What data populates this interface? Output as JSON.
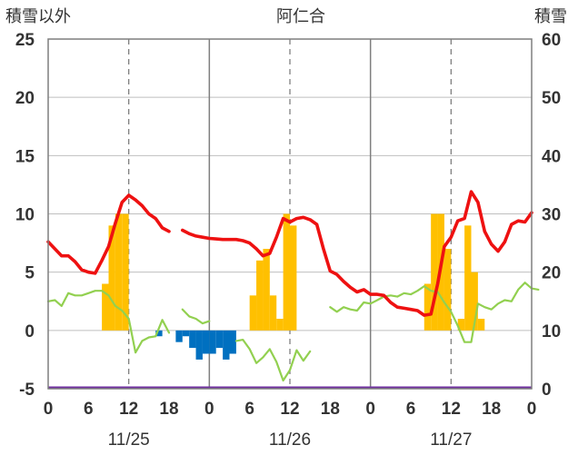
{
  "chart_data": {
    "type": "bar+line",
    "title": "阿仁合",
    "ylabel_left": "積雪以外",
    "ylabel_right": "積雪",
    "ylim_left": [
      -5,
      25
    ],
    "ylim_right": [
      0,
      60
    ],
    "yticks_left": [
      "-5",
      "0",
      "5",
      "10",
      "15",
      "20",
      "25"
    ],
    "yticks_right": [
      "0",
      "10",
      "20",
      "30",
      "40",
      "50",
      "60"
    ],
    "xlim_hours": [
      0,
      72
    ],
    "xticks": [
      "0",
      "6",
      "12",
      "18",
      "0",
      "6",
      "12",
      "18",
      "0",
      "6",
      "12",
      "18",
      "0"
    ],
    "day_labels": [
      "11/25",
      "11/26",
      "11/27"
    ],
    "grid": "vertical dashed at 12:00, solid day separators",
    "colors": {
      "temperature": "#ee1111",
      "snow_depth": "#92d050",
      "precip_positive": "#ffc000",
      "precip_negative": "#0070c0",
      "baseline": "#7030a0"
    },
    "series": [
      {
        "values_axis": "left",
        "kind": "line",
        "color_key": "temperature",
        "points": [
          [
            0,
            7.6
          ],
          [
            1,
            7.0
          ],
          [
            2,
            6.4
          ],
          [
            3,
            6.4
          ],
          [
            4,
            5.9
          ],
          [
            5,
            5.2
          ],
          [
            6,
            5.0
          ],
          [
            7,
            4.9
          ],
          [
            8,
            6.0
          ],
          [
            9,
            7.2
          ],
          [
            10,
            9.2
          ],
          [
            11,
            11.0
          ],
          [
            12,
            11.6
          ],
          [
            13,
            11.2
          ],
          [
            14,
            10.7
          ],
          [
            15,
            10.0
          ],
          [
            16,
            9.6
          ],
          [
            17,
            8.8
          ],
          [
            18,
            8.5
          ],
          [
            19,
            null
          ],
          [
            20,
            8.6
          ],
          [
            21,
            8.3
          ],
          [
            22,
            8.1
          ],
          [
            23,
            8.0
          ],
          [
            24,
            7.9
          ],
          [
            25,
            7.85
          ],
          [
            26,
            7.8
          ],
          [
            27,
            7.8
          ],
          [
            28,
            7.8
          ],
          [
            29,
            7.7
          ],
          [
            30,
            7.5
          ],
          [
            31,
            7.0
          ],
          [
            32,
            6.4
          ],
          [
            33,
            6.6
          ],
          [
            34,
            8.0
          ],
          [
            35,
            9.6
          ],
          [
            36,
            9.3
          ],
          [
            37,
            9.6
          ],
          [
            38,
            9.7
          ],
          [
            39,
            9.5
          ],
          [
            40,
            9.1
          ],
          [
            41,
            7.0
          ],
          [
            42,
            5.1
          ],
          [
            43,
            4.8
          ],
          [
            44,
            4.2
          ],
          [
            45,
            3.7
          ],
          [
            46,
            3.3
          ],
          [
            47,
            3.5
          ],
          [
            48,
            3.1
          ],
          [
            49,
            3.1
          ],
          [
            50,
            3.0
          ],
          [
            51,
            2.4
          ],
          [
            52,
            2.0
          ],
          [
            53,
            1.9
          ],
          [
            54,
            1.8
          ],
          [
            55,
            1.7
          ],
          [
            56,
            1.3
          ],
          [
            57,
            1.4
          ],
          [
            58,
            4.0
          ],
          [
            59,
            7.2
          ],
          [
            60,
            8.0
          ],
          [
            61,
            9.4
          ],
          [
            62,
            9.6
          ],
          [
            63,
            11.9
          ],
          [
            64,
            11.0
          ],
          [
            65,
            8.5
          ],
          [
            66,
            7.4
          ],
          [
            67,
            6.8
          ],
          [
            68,
            7.6
          ],
          [
            69,
            9.1
          ],
          [
            70,
            9.4
          ],
          [
            71,
            9.3
          ],
          [
            72,
            10.1
          ]
        ]
      },
      {
        "values_axis": "left",
        "kind": "line",
        "color_key": "snow_depth",
        "points": [
          [
            0,
            2.5
          ],
          [
            1,
            2.6
          ],
          [
            2,
            2.1
          ],
          [
            3,
            3.2
          ],
          [
            4,
            3.0
          ],
          [
            5,
            3.0
          ],
          [
            6,
            3.2
          ],
          [
            7,
            3.4
          ],
          [
            8,
            3.4
          ],
          [
            9,
            3.0
          ],
          [
            10,
            2.1
          ],
          [
            11,
            1.7
          ],
          [
            12,
            1.0
          ],
          [
            13,
            -1.9
          ],
          [
            14,
            -0.9
          ],
          [
            15,
            -0.6
          ],
          [
            16,
            -0.5
          ],
          [
            17,
            0.9
          ],
          [
            18,
            -0.2
          ],
          [
            19,
            null
          ],
          [
            20,
            1.8
          ],
          [
            21,
            1.2
          ],
          [
            22,
            1.0
          ],
          [
            23,
            0.6
          ],
          [
            24,
            0.8
          ],
          [
            25,
            null
          ],
          [
            26,
            null
          ],
          [
            27,
            null
          ],
          [
            28,
            -0.9
          ],
          [
            29,
            -0.8
          ],
          [
            30,
            -1.6
          ],
          [
            31,
            -2.8
          ],
          [
            32,
            -2.3
          ],
          [
            33,
            -1.6
          ],
          [
            34,
            -2.7
          ],
          [
            35,
            -4.3
          ],
          [
            36,
            -3.4
          ],
          [
            37,
            -1.7
          ],
          [
            38,
            -2.6
          ],
          [
            39,
            -1.8
          ],
          [
            40,
            null
          ],
          [
            41,
            null
          ],
          [
            42,
            2.0
          ],
          [
            43,
            1.6
          ],
          [
            44,
            2.0
          ],
          [
            45,
            1.8
          ],
          [
            46,
            1.7
          ],
          [
            47,
            2.4
          ],
          [
            48,
            2.3
          ],
          [
            49,
            2.6
          ],
          [
            50,
            2.9
          ],
          [
            51,
            3.0
          ],
          [
            52,
            2.9
          ],
          [
            53,
            3.2
          ],
          [
            54,
            3.1
          ],
          [
            55,
            3.4
          ],
          [
            56,
            3.8
          ],
          [
            57,
            3.4
          ],
          [
            58,
            3.3
          ],
          [
            59,
            2.4
          ],
          [
            60,
            1.6
          ],
          [
            61,
            0.4
          ],
          [
            62,
            -1.0
          ],
          [
            63,
            -1.0
          ],
          [
            64,
            2.3
          ],
          [
            65,
            2.0
          ],
          [
            66,
            1.8
          ],
          [
            67,
            2.3
          ],
          [
            68,
            2.6
          ],
          [
            69,
            2.5
          ],
          [
            70,
            3.5
          ],
          [
            71,
            4.1
          ],
          [
            72,
            3.6
          ],
          [
            73,
            3.5
          ]
        ]
      },
      {
        "values_axis": "left",
        "kind": "bar",
        "bars_positive": [
          [
            8,
            4.0
          ],
          [
            9,
            9.0
          ],
          [
            10,
            10.0
          ],
          [
            11,
            10.0
          ],
          [
            30,
            3.0
          ],
          [
            31,
            6.0
          ],
          [
            32,
            7.0
          ],
          [
            33,
            3.0
          ],
          [
            34,
            1.0
          ],
          [
            35,
            10.0
          ],
          [
            36,
            9.0
          ],
          [
            56,
            4.0
          ],
          [
            57,
            10.0
          ],
          [
            58,
            10.0
          ],
          [
            59,
            7.0
          ],
          [
            61,
            1.0
          ],
          [
            62,
            9.0
          ],
          [
            63,
            5.0
          ],
          [
            64,
            1.0
          ]
        ],
        "bars_negative": [
          [
            16,
            -0.5
          ],
          [
            19,
            -1.0
          ],
          [
            20,
            -0.5
          ],
          [
            21,
            -1.5
          ],
          [
            22,
            -2.5
          ],
          [
            23,
            -2.0
          ],
          [
            24,
            -2.0
          ],
          [
            25,
            -1.5
          ],
          [
            26,
            -2.5
          ],
          [
            27,
            -2.0
          ]
        ]
      }
    ]
  }
}
